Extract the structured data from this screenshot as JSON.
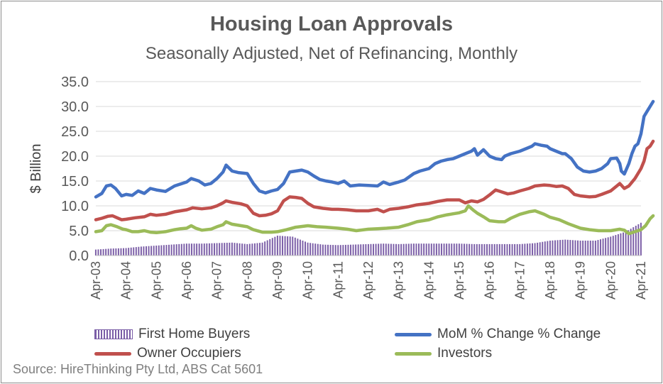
{
  "chart_data": {
    "type": "line",
    "title": "Housing Loan Approvals",
    "subtitle": "Seasonally Adjusted, Net of Refinancing, Monthly",
    "ylabel": "$ Billion",
    "xlabel": "",
    "ylim": [
      0,
      35
    ],
    "yticks": [
      "0.0",
      "5.0",
      "10.0",
      "15.0",
      "20.0",
      "25.0",
      "30.0",
      "35.0"
    ],
    "categories": [
      "Apr-03",
      "Apr-04",
      "Apr-05",
      "Apr-06",
      "Apr-07",
      "Apr-08",
      "Apr-09",
      "Apr-10",
      "Apr-11",
      "Apr-12",
      "Apr-13",
      "Apr-14",
      "Apr-15",
      "Apr-16",
      "Apr-17",
      "Apr-18",
      "Apr-19",
      "Apr-20",
      "Apr-21"
    ],
    "grid": true,
    "legend_position": "bottom",
    "series": [
      {
        "name": "First Home Buyers",
        "type": "bar",
        "color": "#7b5ea7",
        "points": [
          [
            0,
            1.2
          ],
          [
            0.5,
            1.4
          ],
          [
            1,
            1.5
          ],
          [
            1.5,
            1.8
          ],
          [
            2,
            2.0
          ],
          [
            2.5,
            2.2
          ],
          [
            3,
            2.4
          ],
          [
            3.5,
            2.4
          ],
          [
            4,
            2.5
          ],
          [
            4.5,
            2.6
          ],
          [
            5,
            2.3
          ],
          [
            5.5,
            2.6
          ],
          [
            6,
            4.0
          ],
          [
            6.5,
            3.8
          ],
          [
            7,
            2.6
          ],
          [
            7.5,
            2.2
          ],
          [
            8,
            2.1
          ],
          [
            8.5,
            2.2
          ],
          [
            9,
            2.3
          ],
          [
            9.5,
            2.4
          ],
          [
            10,
            2.3
          ],
          [
            10.5,
            2.4
          ],
          [
            11,
            2.4
          ],
          [
            11.5,
            2.4
          ],
          [
            12,
            2.4
          ],
          [
            12.5,
            2.3
          ],
          [
            13,
            2.3
          ],
          [
            13.5,
            2.3
          ],
          [
            14,
            2.3
          ],
          [
            14.5,
            2.5
          ],
          [
            15,
            3.0
          ],
          [
            15.5,
            3.2
          ],
          [
            16,
            3.0
          ],
          [
            16.5,
            3.0
          ],
          [
            17,
            3.8
          ],
          [
            17.5,
            4.8
          ],
          [
            18,
            6.6
          ]
        ]
      },
      {
        "name": "MoM % Change % Change",
        "type": "line",
        "color": "#4472c4",
        "points": [
          [
            0,
            11.8
          ],
          [
            0.2,
            12.5
          ],
          [
            0.35,
            14.0
          ],
          [
            0.5,
            14.2
          ],
          [
            0.65,
            13.5
          ],
          [
            0.85,
            12.0
          ],
          [
            1,
            12.3
          ],
          [
            1.2,
            12.1
          ],
          [
            1.4,
            13.0
          ],
          [
            1.6,
            12.5
          ],
          [
            1.8,
            13.5
          ],
          [
            2,
            13.2
          ],
          [
            2.3,
            12.9
          ],
          [
            2.6,
            14.0
          ],
          [
            3,
            14.8
          ],
          [
            3.15,
            15.5
          ],
          [
            3.4,
            15.0
          ],
          [
            3.6,
            14.2
          ],
          [
            3.8,
            14.5
          ],
          [
            4,
            15.5
          ],
          [
            4.2,
            16.8
          ],
          [
            4.3,
            18.2
          ],
          [
            4.5,
            17.0
          ],
          [
            4.7,
            16.7
          ],
          [
            5,
            16.5
          ],
          [
            5.2,
            14.5
          ],
          [
            5.4,
            13.0
          ],
          [
            5.6,
            12.6
          ],
          [
            5.8,
            13.0
          ],
          [
            6,
            13.3
          ],
          [
            6.2,
            14.5
          ],
          [
            6.4,
            16.8
          ],
          [
            6.6,
            17.0
          ],
          [
            6.8,
            17.2
          ],
          [
            7,
            16.8
          ],
          [
            7.2,
            16.0
          ],
          [
            7.4,
            15.3
          ],
          [
            7.6,
            15.0
          ],
          [
            7.8,
            14.8
          ],
          [
            8,
            14.5
          ],
          [
            8.2,
            15.0
          ],
          [
            8.4,
            14.0
          ],
          [
            8.7,
            14.2
          ],
          [
            9,
            14.1
          ],
          [
            9.3,
            14.0
          ],
          [
            9.5,
            14.8
          ],
          [
            9.7,
            14.3
          ],
          [
            10,
            14.8
          ],
          [
            10.2,
            15.2
          ],
          [
            10.5,
            16.5
          ],
          [
            10.7,
            17.0
          ],
          [
            11,
            17.5
          ],
          [
            11.2,
            18.5
          ],
          [
            11.4,
            19.0
          ],
          [
            11.6,
            19.3
          ],
          [
            11.8,
            19.5
          ],
          [
            12,
            20.0
          ],
          [
            12.2,
            20.5
          ],
          [
            12.4,
            21.0
          ],
          [
            12.5,
            21.5
          ],
          [
            12.6,
            20.2
          ],
          [
            12.8,
            21.3
          ],
          [
            13,
            20.0
          ],
          [
            13.2,
            19.5
          ],
          [
            13.4,
            19.3
          ],
          [
            13.5,
            20.0
          ],
          [
            13.7,
            20.5
          ],
          [
            14,
            21.0
          ],
          [
            14.2,
            21.5
          ],
          [
            14.4,
            22.0
          ],
          [
            14.5,
            22.5
          ],
          [
            14.7,
            22.2
          ],
          [
            14.9,
            22.0
          ],
          [
            15,
            21.5
          ],
          [
            15.2,
            21.0
          ],
          [
            15.4,
            20.5
          ],
          [
            15.5,
            20.5
          ],
          [
            15.7,
            19.5
          ],
          [
            15.9,
            17.8
          ],
          [
            16.1,
            17.0
          ],
          [
            16.3,
            16.8
          ],
          [
            16.5,
            17.0
          ],
          [
            16.7,
            17.5
          ],
          [
            16.9,
            18.5
          ],
          [
            17,
            19.5
          ],
          [
            17.2,
            19.6
          ],
          [
            17.3,
            18.5
          ],
          [
            17.35,
            17.0
          ],
          [
            17.45,
            16.4
          ],
          [
            17.6,
            18.5
          ],
          [
            17.7,
            20.5
          ],
          [
            17.8,
            22.0
          ],
          [
            17.9,
            22.5
          ],
          [
            18,
            24.5
          ],
          [
            18.1,
            28.0
          ],
          [
            18.2,
            29.0
          ],
          [
            18.3,
            30.0
          ],
          [
            18.4,
            31.0
          ]
        ]
      },
      {
        "name": "Owner Occupiers",
        "type": "line",
        "color": "#c0504d",
        "points": [
          [
            0,
            7.2
          ],
          [
            0.2,
            7.5
          ],
          [
            0.4,
            7.9
          ],
          [
            0.55,
            8.0
          ],
          [
            0.7,
            7.6
          ],
          [
            0.85,
            7.2
          ],
          [
            1,
            7.3
          ],
          [
            1.3,
            7.6
          ],
          [
            1.6,
            7.8
          ],
          [
            1.8,
            8.3
          ],
          [
            2,
            8.1
          ],
          [
            2.3,
            8.3
          ],
          [
            2.6,
            8.8
          ],
          [
            3,
            9.2
          ],
          [
            3.2,
            9.6
          ],
          [
            3.5,
            9.4
          ],
          [
            3.8,
            9.6
          ],
          [
            4,
            10.0
          ],
          [
            4.2,
            10.6
          ],
          [
            4.3,
            11.0
          ],
          [
            4.5,
            10.7
          ],
          [
            4.8,
            10.4
          ],
          [
            5,
            10.0
          ],
          [
            5.2,
            8.5
          ],
          [
            5.4,
            8.0
          ],
          [
            5.6,
            8.1
          ],
          [
            5.8,
            8.4
          ],
          [
            6,
            9.0
          ],
          [
            6.2,
            11.0
          ],
          [
            6.4,
            11.8
          ],
          [
            6.6,
            11.7
          ],
          [
            6.8,
            11.5
          ],
          [
            7,
            10.5
          ],
          [
            7.2,
            9.8
          ],
          [
            7.5,
            9.5
          ],
          [
            7.8,
            9.3
          ],
          [
            8,
            9.3
          ],
          [
            8.3,
            9.2
          ],
          [
            8.6,
            9.0
          ],
          [
            9,
            9.0
          ],
          [
            9.3,
            9.3
          ],
          [
            9.5,
            8.8
          ],
          [
            9.7,
            9.3
          ],
          [
            10,
            9.5
          ],
          [
            10.3,
            9.8
          ],
          [
            10.6,
            10.2
          ],
          [
            11,
            10.5
          ],
          [
            11.3,
            10.9
          ],
          [
            11.6,
            11.2
          ],
          [
            12,
            11.2
          ],
          [
            12.2,
            10.6
          ],
          [
            12.4,
            11.0
          ],
          [
            12.6,
            10.8
          ],
          [
            12.8,
            11.3
          ],
          [
            13,
            12.2
          ],
          [
            13.2,
            13.2
          ],
          [
            13.4,
            12.8
          ],
          [
            13.6,
            12.4
          ],
          [
            13.8,
            12.6
          ],
          [
            14,
            13.0
          ],
          [
            14.3,
            13.5
          ],
          [
            14.5,
            14.0
          ],
          [
            14.8,
            14.2
          ],
          [
            15,
            14.1
          ],
          [
            15.2,
            13.9
          ],
          [
            15.4,
            14.0
          ],
          [
            15.6,
            13.5
          ],
          [
            15.8,
            12.3
          ],
          [
            16,
            12.0
          ],
          [
            16.3,
            11.8
          ],
          [
            16.5,
            11.9
          ],
          [
            16.7,
            12.3
          ],
          [
            17,
            13.0
          ],
          [
            17.2,
            14.0
          ],
          [
            17.3,
            14.5
          ],
          [
            17.45,
            13.5
          ],
          [
            17.6,
            14.0
          ],
          [
            17.8,
            15.5
          ],
          [
            18,
            17.5
          ],
          [
            18.1,
            19.0
          ],
          [
            18.2,
            21.5
          ],
          [
            18.3,
            22.0
          ],
          [
            18.4,
            23.0
          ]
        ]
      },
      {
        "name": "Investors",
        "type": "line",
        "color": "#9bbb59",
        "points": [
          [
            0,
            4.8
          ],
          [
            0.2,
            5.0
          ],
          [
            0.35,
            6.0
          ],
          [
            0.5,
            6.2
          ],
          [
            0.7,
            5.8
          ],
          [
            0.9,
            5.3
          ],
          [
            1,
            5.2
          ],
          [
            1.2,
            4.8
          ],
          [
            1.4,
            4.8
          ],
          [
            1.6,
            5.0
          ],
          [
            1.8,
            4.7
          ],
          [
            2,
            4.6
          ],
          [
            2.3,
            4.8
          ],
          [
            2.6,
            5.2
          ],
          [
            2.8,
            5.4
          ],
          [
            3,
            5.5
          ],
          [
            3.15,
            6.0
          ],
          [
            3.3,
            5.5
          ],
          [
            3.5,
            5.1
          ],
          [
            3.8,
            5.3
          ],
          [
            4,
            5.8
          ],
          [
            4.2,
            6.2
          ],
          [
            4.3,
            6.8
          ],
          [
            4.5,
            6.3
          ],
          [
            4.8,
            6.0
          ],
          [
            5,
            5.8
          ],
          [
            5.2,
            5.2
          ],
          [
            5.5,
            4.7
          ],
          [
            5.8,
            4.7
          ],
          [
            6,
            4.8
          ],
          [
            6.3,
            5.2
          ],
          [
            6.6,
            5.7
          ],
          [
            7,
            6.0
          ],
          [
            7.3,
            5.8
          ],
          [
            7.6,
            5.7
          ],
          [
            8,
            5.5
          ],
          [
            8.3,
            5.3
          ],
          [
            8.6,
            5.0
          ],
          [
            9,
            5.3
          ],
          [
            9.3,
            5.4
          ],
          [
            9.6,
            5.5
          ],
          [
            10,
            5.7
          ],
          [
            10.3,
            6.2
          ],
          [
            10.6,
            6.8
          ],
          [
            11,
            7.2
          ],
          [
            11.3,
            7.8
          ],
          [
            11.6,
            8.2
          ],
          [
            12,
            8.6
          ],
          [
            12.2,
            9.0
          ],
          [
            12.3,
            10.0
          ],
          [
            12.45,
            9.2
          ],
          [
            12.6,
            8.5
          ],
          [
            12.8,
            7.8
          ],
          [
            13,
            7.0
          ],
          [
            13.3,
            6.8
          ],
          [
            13.5,
            6.8
          ],
          [
            13.7,
            7.5
          ],
          [
            14,
            8.3
          ],
          [
            14.3,
            8.8
          ],
          [
            14.5,
            9.0
          ],
          [
            14.8,
            8.3
          ],
          [
            15,
            7.7
          ],
          [
            15.3,
            7.2
          ],
          [
            15.6,
            6.4
          ],
          [
            16,
            5.5
          ],
          [
            16.3,
            5.2
          ],
          [
            16.6,
            5.0
          ],
          [
            17,
            5.0
          ],
          [
            17.3,
            5.3
          ],
          [
            17.45,
            5.1
          ],
          [
            17.6,
            4.4
          ],
          [
            17.8,
            4.8
          ],
          [
            18,
            5.2
          ],
          [
            18.15,
            6.0
          ],
          [
            18.3,
            7.4
          ],
          [
            18.4,
            8.0
          ]
        ]
      }
    ],
    "source": "Source: HireThinking Pty Ltd, ABS Cat 5601"
  }
}
